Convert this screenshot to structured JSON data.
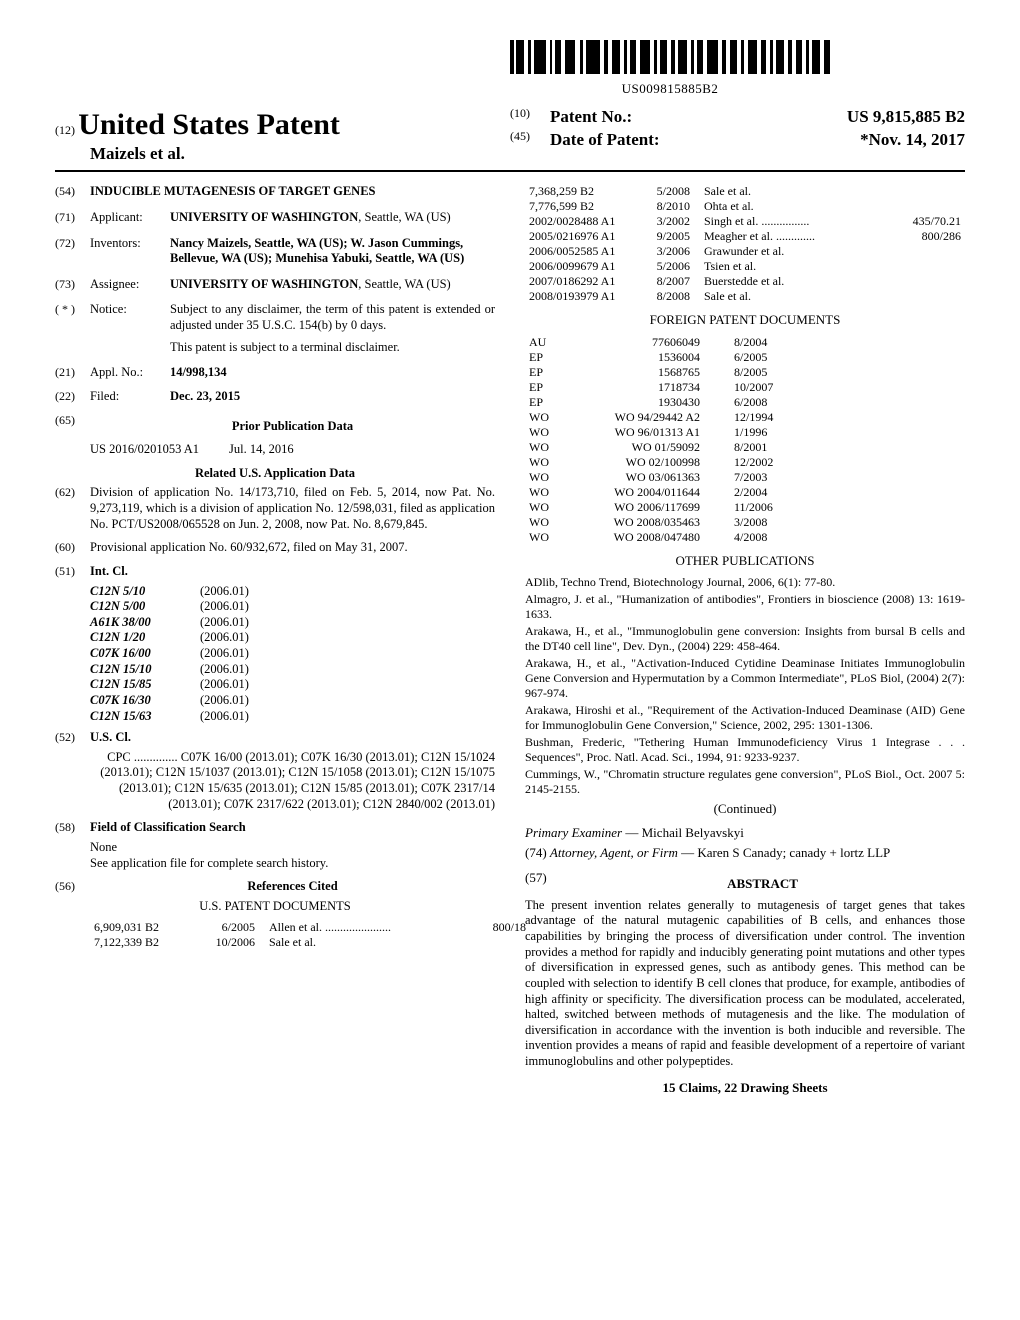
{
  "barcode_text": "US009815885B2",
  "header": {
    "usp_code": "(12)",
    "usp_title": "United States Patent",
    "authors": "Maizels et al.",
    "right": [
      {
        "code": "(10)",
        "label": "Patent No.:",
        "value": "US 9,815,885 B2"
      },
      {
        "code": "(45)",
        "label": "Date of Patent:",
        "value": "*Nov. 14, 2017"
      }
    ]
  },
  "left": {
    "title": {
      "code": "(54)",
      "text": "INDUCIBLE MUTAGENESIS OF TARGET GENES"
    },
    "applicant": {
      "code": "(71)",
      "label": "Applicant:",
      "name": "UNIVERSITY OF WASHINGTON",
      "loc": "Seattle, WA (US)"
    },
    "inventors": {
      "code": "(72)",
      "label": "Inventors:",
      "text": "Nancy Maizels, Seattle, WA (US); W. Jason Cummings, Bellevue, WA (US); Munehisa Yabuki, Seattle, WA (US)"
    },
    "assignee": {
      "code": "(73)",
      "label": "Assignee:",
      "name": "UNIVERSITY OF WASHINGTON",
      "loc": "Seattle, WA (US)"
    },
    "notice": {
      "code": "( * )",
      "label": "Notice:",
      "p1": "Subject to any disclaimer, the term of this patent is extended or adjusted under 35 U.S.C. 154(b) by 0 days.",
      "p2": "This patent is subject to a terminal disclaimer."
    },
    "appl": {
      "code": "(21)",
      "label": "Appl. No.:",
      "value": "14/998,134"
    },
    "filed": {
      "code": "(22)",
      "label": "Filed:",
      "value": "Dec. 23, 2015"
    },
    "ppd": {
      "code": "(65)",
      "title": "Prior Publication Data",
      "row": {
        "num": "US 2016/0201053 A1",
        "date": "Jul. 14, 2016"
      }
    },
    "related_title": "Related U.S. Application Data",
    "division": {
      "code": "(62)",
      "text": "Division of application No. 14/173,710, filed on Feb. 5, 2014, now Pat. No. 9,273,119, which is a division of application No. 12/598,031, filed as application No. PCT/US2008/065528 on Jun. 2, 2008, now Pat. No. 8,679,845."
    },
    "provisional": {
      "code": "(60)",
      "text": "Provisional application No. 60/932,672, filed on May 31, 2007."
    },
    "intcl": {
      "code": "(51)",
      "label": "Int. Cl.",
      "rows": [
        {
          "cls": "C12N 5/10",
          "yr": "(2006.01)"
        },
        {
          "cls": "C12N 5/00",
          "yr": "(2006.01)"
        },
        {
          "cls": "A61K 38/00",
          "yr": "(2006.01)"
        },
        {
          "cls": "C12N 1/20",
          "yr": "(2006.01)"
        },
        {
          "cls": "C07K 16/00",
          "yr": "(2006.01)"
        },
        {
          "cls": "C12N 15/10",
          "yr": "(2006.01)"
        },
        {
          "cls": "C12N 15/85",
          "yr": "(2006.01)"
        },
        {
          "cls": "C07K 16/30",
          "yr": "(2006.01)"
        },
        {
          "cls": "C12N 15/63",
          "yr": "(2006.01)"
        }
      ]
    },
    "uscl": {
      "code": "(52)",
      "label": "U.S. Cl.",
      "text": "CPC .............. C07K 16/00 (2013.01); C07K 16/30 (2013.01); C12N 15/1024 (2013.01); C12N 15/1037 (2013.01); C12N 15/1058 (2013.01); C12N 15/1075 (2013.01); C12N 15/635 (2013.01); C12N 15/85 (2013.01); C07K 2317/14 (2013.01); C07K 2317/622 (2013.01); C12N 2840/002 (2013.01)"
    },
    "focs": {
      "code": "(58)",
      "label": "Field of Classification Search",
      "p1": "None",
      "p2": "See application file for complete search history."
    },
    "refs_code": "(56)",
    "refs_title": "References Cited",
    "us_docs_title": "U.S. PATENT DOCUMENTS",
    "us_docs": [
      {
        "n": "6,909,031 B2",
        "d": "6/2005",
        "a": "Allen et al. ......................",
        "x": "800/18"
      },
      {
        "n": "7,122,339 B2",
        "d": "10/2006",
        "a": "Sale et al.",
        "x": ""
      }
    ]
  },
  "right": {
    "us_docs2": [
      {
        "n": "7,368,259 B2",
        "d": "5/2008",
        "a": "Sale et al.",
        "x": ""
      },
      {
        "n": "7,776,599 B2",
        "d": "8/2010",
        "a": "Ohta et al.",
        "x": ""
      },
      {
        "n": "2002/0028488 A1",
        "d": "3/2002",
        "a": "Singh et al. ................",
        "x": "435/70.21"
      },
      {
        "n": "2005/0216976 A1",
        "d": "9/2005",
        "a": "Meagher et al. .............",
        "x": "800/286"
      },
      {
        "n": "2006/0052585 A1",
        "d": "3/2006",
        "a": "Grawunder et al.",
        "x": ""
      },
      {
        "n": "2006/0099679 A1",
        "d": "5/2006",
        "a": "Tsien et al.",
        "x": ""
      },
      {
        "n": "2007/0186292 A1",
        "d": "8/2007",
        "a": "Buerstedde et al.",
        "x": ""
      },
      {
        "n": "2008/0193979 A1",
        "d": "8/2008",
        "a": "Sale et al.",
        "x": ""
      }
    ],
    "foreign_title": "FOREIGN PATENT DOCUMENTS",
    "foreign": [
      {
        "c": "AU",
        "n": "77606049",
        "d": "8/2004"
      },
      {
        "c": "EP",
        "n": "1536004",
        "d": "6/2005"
      },
      {
        "c": "EP",
        "n": "1568765",
        "d": "8/2005"
      },
      {
        "c": "EP",
        "n": "1718734",
        "d": "10/2007"
      },
      {
        "c": "EP",
        "n": "1930430",
        "d": "6/2008"
      },
      {
        "c": "WO",
        "n": "WO 94/29442 A2",
        "d": "12/1994"
      },
      {
        "c": "WO",
        "n": "WO 96/01313 A1",
        "d": "1/1996"
      },
      {
        "c": "WO",
        "n": "WO 01/59092",
        "d": "8/2001"
      },
      {
        "c": "WO",
        "n": "WO 02/100998",
        "d": "12/2002"
      },
      {
        "c": "WO",
        "n": "WO 03/061363",
        "d": "7/2003"
      },
      {
        "c": "WO",
        "n": "WO 2004/011644",
        "d": "2/2004"
      },
      {
        "c": "WO",
        "n": "WO 2006/117699",
        "d": "11/2006"
      },
      {
        "c": "WO",
        "n": "WO 2008/035463",
        "d": "3/2008"
      },
      {
        "c": "WO",
        "n": "WO 2008/047480",
        "d": "4/2008"
      }
    ],
    "other_pubs_title": "OTHER PUBLICATIONS",
    "other_pubs": [
      "ADlib, Techno Trend, Biotechnology Journal, 2006, 6(1): 77-80.",
      "Almagro, J. et al., \"Humanization of antibodies\", Frontiers in bioscience (2008) 13: 1619-1633.",
      "Arakawa, H., et al., \"Immunoglobulin gene conversion: Insights from bursal B cells and the DT40 cell line\", Dev. Dyn., (2004) 229: 458-464.",
      "Arakawa, H., et al., \"Activation-Induced Cytidine Deaminase Initiates Immunoglobulin Gene Conversion and Hypermutation by a Common Intermediate\", PLoS Biol, (2004) 2(7): 967-974.",
      "Arakawa, Hiroshi et al., \"Requirement of the Activation-Induced Deaminase (AID) Gene for Immunoglobulin Gene Conversion,\" Science, 2002, 295: 1301-1306.",
      "Bushman, Frederic, \"Tethering Human Immunodeficiency Virus 1 Integrase . . . Sequences\", Proc. Natl. Acad. Sci., 1994, 91: 9233-9237.",
      "Cummings, W., \"Chromatin structure regulates gene conversion\", PLoS Biol., Oct. 2007 5: 2145-2155."
    ],
    "continued": "(Continued)",
    "examiner": {
      "label": "Primary Examiner",
      "name": "Michail Belyavskyi"
    },
    "attorney": {
      "code": "(74)",
      "label": "Attorney, Agent, or Firm",
      "name": "Karen S Canady; canady + lortz LLP"
    },
    "abstract": {
      "code": "(57)",
      "title": "ABSTRACT",
      "body": "The present invention relates generally to mutagenesis of target genes that takes advantage of the natural mutagenic capabilities of B cells, and enhances those capabilities by bringing the process of diversification under control. The invention provides a method for rapidly and inducibly generating point mutations and other types of diversification in expressed genes, such as antibody genes. This method can be coupled with selection to identify B cell clones that produce, for example, antibodies of high affinity or specificity. The diversification process can be modulated, accelerated, halted, switched between methods of mutagenesis and the like. The modulation of diversification in accordance with the invention is both inducible and reversible. The invention provides a means of rapid and feasible development of a repertoire of variant immunoglobulins and other polypeptides."
    },
    "claims": "15 Claims, 22 Drawing Sheets"
  }
}
